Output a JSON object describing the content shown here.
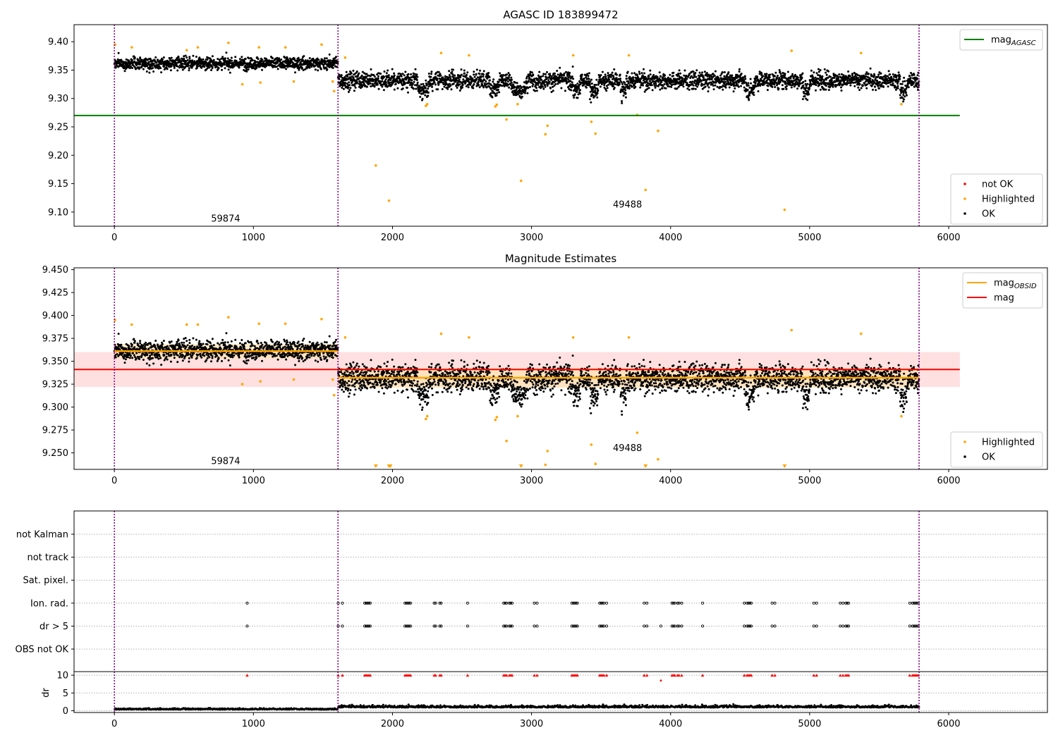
{
  "colors": {
    "ok": "#000000",
    "highlighted": "#ffa500",
    "not_ok": "#ff0000",
    "mag_agasc": "#008000",
    "mag_obsid": "#ffa500",
    "mag": "#ff0000",
    "band_mag": "#ffcccc",
    "band_obsid": "#ffe4b3",
    "obs_line": "#800080",
    "grid": "#b0b0b0"
  },
  "chart_data": [
    {
      "id": "agasc",
      "type": "scatter",
      "title": "AGASC ID 183899472",
      "xlim": [
        -290,
        6710
      ],
      "ylim": [
        9.075,
        9.43
      ],
      "xticks": [
        "0",
        "1000",
        "2000",
        "3000",
        "4000",
        "5000",
        "6000"
      ],
      "xtick_values": [
        0,
        1000,
        2000,
        3000,
        4000,
        5000,
        6000
      ],
      "yticks": [
        "9.10",
        "9.15",
        "9.20",
        "9.25",
        "9.30",
        "9.35",
        "9.40"
      ],
      "ytick_values": [
        9.1,
        9.15,
        9.2,
        9.25,
        9.3,
        9.35,
        9.4
      ],
      "obs_boundaries": [
        0,
        1608,
        5787
      ],
      "annotations": [
        {
          "text": "59874",
          "x": 800,
          "y": 9.088
        },
        {
          "text": "49488",
          "x": 3690,
          "y": 9.113
        }
      ],
      "hlines": [
        {
          "name": "mag_AGASC",
          "y": 9.27,
          "x0": -290,
          "x1": 6080,
          "color": "mag_agasc"
        }
      ],
      "segments": [
        {
          "x0": 0,
          "x1": 1608,
          "mean": 9.362,
          "spread": 0.009
        },
        {
          "x0": 1608,
          "x1": 5787,
          "mean": 9.332,
          "spread": 0.013
        }
      ],
      "dip_regions": [
        [
          2180,
          2260
        ],
        [
          2700,
          2760
        ],
        [
          2860,
          2960
        ],
        [
          3300,
          3350
        ],
        [
          3420,
          3480
        ],
        [
          3640,
          3680
        ],
        [
          4540,
          4600
        ],
        [
          4950,
          5000
        ],
        [
          5650,
          5700
        ]
      ],
      "highlighted": [
        [
          5,
          9.395
        ],
        [
          125,
          9.39
        ],
        [
          520,
          9.385
        ],
        [
          600,
          9.39
        ],
        [
          820,
          9.398
        ],
        [
          920,
          9.325
        ],
        [
          1040,
          9.39
        ],
        [
          1050,
          9.328
        ],
        [
          1230,
          9.39
        ],
        [
          1290,
          9.33
        ],
        [
          1490,
          9.395
        ],
        [
          1570,
          9.33
        ],
        [
          1580,
          9.313
        ],
        [
          1660,
          9.372
        ],
        [
          1880,
          9.182
        ],
        [
          1975,
          9.12
        ],
        [
          2240,
          9.287
        ],
        [
          2250,
          9.29
        ],
        [
          2350,
          9.38
        ],
        [
          2550,
          9.376
        ],
        [
          2740,
          9.286
        ],
        [
          2750,
          9.289
        ],
        [
          2820,
          9.263
        ],
        [
          2900,
          9.29
        ],
        [
          2925,
          9.155
        ],
        [
          3100,
          9.237
        ],
        [
          3115,
          9.252
        ],
        [
          3300,
          9.376
        ],
        [
          3430,
          9.259
        ],
        [
          3460,
          9.238
        ],
        [
          3700,
          9.376
        ],
        [
          3760,
          9.271
        ],
        [
          3820,
          9.139
        ],
        [
          3910,
          9.243
        ],
        [
          4820,
          9.104
        ],
        [
          4870,
          9.384
        ],
        [
          5370,
          9.38
        ],
        [
          5660,
          9.29
        ]
      ],
      "legend": {
        "position": "top-right",
        "items": [
          {
            "label": "mag",
            "sub": "AGASC",
            "kind": "line",
            "color": "mag_agasc"
          }
        ]
      },
      "legend2": {
        "position": "lower-right",
        "items": [
          {
            "label": "not OK",
            "kind": "dot",
            "color": "not_ok"
          },
          {
            "label": "Highlighted",
            "kind": "dot",
            "color": "highlighted"
          },
          {
            "label": "OK",
            "kind": "dot",
            "color": "ok"
          }
        ]
      }
    },
    {
      "id": "estimates",
      "type": "scatter",
      "title": "Magnitude Estimates",
      "xlim": [
        -290,
        6710
      ],
      "ylim": [
        9.232,
        9.452
      ],
      "xticks": [
        "0",
        "1000",
        "2000",
        "3000",
        "4000",
        "5000",
        "6000"
      ],
      "xtick_values": [
        0,
        1000,
        2000,
        3000,
        4000,
        5000,
        6000
      ],
      "yticks": [
        "9.250",
        "9.275",
        "9.300",
        "9.325",
        "9.350",
        "9.375",
        "9.400",
        "9.425",
        "9.450"
      ],
      "ytick_values": [
        9.25,
        9.275,
        9.3,
        9.325,
        9.35,
        9.375,
        9.4,
        9.425,
        9.45
      ],
      "obs_boundaries": [
        0,
        1608,
        5787
      ],
      "annotations": [
        {
          "text": "59874",
          "x": 800,
          "y": 9.241
        },
        {
          "text": "49488",
          "x": 3690,
          "y": 9.255
        }
      ],
      "mag": {
        "y": 9.341,
        "band": [
          9.322,
          9.36
        ],
        "x0": -290,
        "x1": 6080
      },
      "mag_obsid": [
        {
          "x0": 0,
          "x1": 1608,
          "y": 9.361,
          "band": [
            9.353,
            9.369
          ]
        },
        {
          "x0": 1608,
          "x1": 5787,
          "y": 9.332,
          "band": [
            9.321,
            9.343
          ]
        }
      ],
      "segments": [
        {
          "x0": 0,
          "x1": 1608,
          "mean": 9.362,
          "spread": 0.009
        },
        {
          "x0": 1608,
          "x1": 5787,
          "mean": 9.332,
          "spread": 0.013
        }
      ],
      "dip_regions": [
        [
          2180,
          2260
        ],
        [
          2700,
          2760
        ],
        [
          2860,
          2960
        ],
        [
          3300,
          3350
        ],
        [
          3420,
          3480
        ],
        [
          3640,
          3680
        ],
        [
          4540,
          4600
        ],
        [
          4950,
          5000
        ],
        [
          5650,
          5700
        ]
      ],
      "highlighted": [
        [
          5,
          9.395
        ],
        [
          125,
          9.39
        ],
        [
          520,
          9.39
        ],
        [
          600,
          9.39
        ],
        [
          820,
          9.398
        ],
        [
          920,
          9.325
        ],
        [
          1040,
          9.391
        ],
        [
          1050,
          9.328
        ],
        [
          1230,
          9.391
        ],
        [
          1290,
          9.33
        ],
        [
          1490,
          9.396
        ],
        [
          1570,
          9.33
        ],
        [
          1580,
          9.313
        ],
        [
          1660,
          9.376
        ],
        [
          2240,
          9.287
        ],
        [
          2250,
          9.29
        ],
        [
          2350,
          9.38
        ],
        [
          2550,
          9.376
        ],
        [
          2740,
          9.286
        ],
        [
          2750,
          9.289
        ],
        [
          2820,
          9.263
        ],
        [
          2900,
          9.29
        ],
        [
          3100,
          9.237
        ],
        [
          3115,
          9.252
        ],
        [
          3300,
          9.376
        ],
        [
          3430,
          9.259
        ],
        [
          3460,
          9.238
        ],
        [
          3700,
          9.376
        ],
        [
          3760,
          9.272
        ],
        [
          3910,
          9.243
        ],
        [
          4870,
          9.384
        ],
        [
          5370,
          9.38
        ],
        [
          5660,
          9.29
        ]
      ],
      "offscale_low": [
        1880,
        1975,
        1985,
        2925,
        3820,
        4820
      ],
      "legend": {
        "position": "top-right",
        "items": [
          {
            "label": "mag",
            "sub": "OBSID",
            "kind": "line",
            "color": "mag_obsid"
          },
          {
            "label": "mag",
            "sub": "",
            "kind": "line",
            "color": "mag"
          }
        ]
      },
      "legend2": {
        "position": "lower-right",
        "items": [
          {
            "label": "Highlighted",
            "kind": "dot",
            "color": "highlighted"
          },
          {
            "label": "OK",
            "kind": "dot",
            "color": "ok"
          }
        ]
      }
    },
    {
      "id": "flags",
      "type": "scatter",
      "xlim": [
        -290,
        6710
      ],
      "categories": [
        "OBS not OK",
        "dr > 5",
        "Ion. rad.",
        "Sat. pixel.",
        "not track",
        "not Kalman"
      ],
      "flag_times": [
        955,
        1610,
        1640,
        1800,
        1810,
        1820,
        1830,
        1840,
        2090,
        2100,
        2110,
        2120,
        2130,
        2300,
        2310,
        2340,
        2350,
        2540,
        2800,
        2810,
        2820,
        2840,
        2850,
        2860,
        3020,
        3040,
        3290,
        3300,
        3310,
        3320,
        3330,
        3490,
        3500,
        3510,
        3520,
        3540,
        3810,
        3830,
        4010,
        4020,
        4030,
        4050,
        4060,
        4080,
        4230,
        4530,
        4550,
        4560,
        4570,
        4580,
        4730,
        4750,
        5030,
        5050,
        5220,
        5240,
        5260,
        5270,
        5280,
        5720,
        5740,
        5750,
        5760,
        5770,
        5780
      ],
      "dr_only_times": [
        3930
      ],
      "obs_boundaries": [
        0,
        1608,
        5787
      ]
    },
    {
      "id": "dr",
      "type": "scatter",
      "ylabel": "dr",
      "xlim": [
        -290,
        6710
      ],
      "ylim": [
        -0.5,
        11
      ],
      "yticks": [
        "0",
        "5",
        "10"
      ],
      "ytick_values": [
        0,
        5,
        10
      ],
      "xticks": [
        "0",
        "1000",
        "2000",
        "3000",
        "4000",
        "5000",
        "6000"
      ],
      "xtick_values": [
        0,
        1000,
        2000,
        3000,
        4000,
        5000,
        6000
      ],
      "clipped_value": 10,
      "extra_not_ok": [
        [
          3930,
          8.5
        ]
      ],
      "segments": [
        {
          "x0": 0,
          "x1": 1608,
          "base": 0.35,
          "spread": 0.25
        },
        {
          "x0": 1608,
          "x1": 5787,
          "base": 0.9,
          "spread": 0.5
        }
      ],
      "obs_boundaries": [
        0,
        1608,
        5787
      ]
    }
  ]
}
